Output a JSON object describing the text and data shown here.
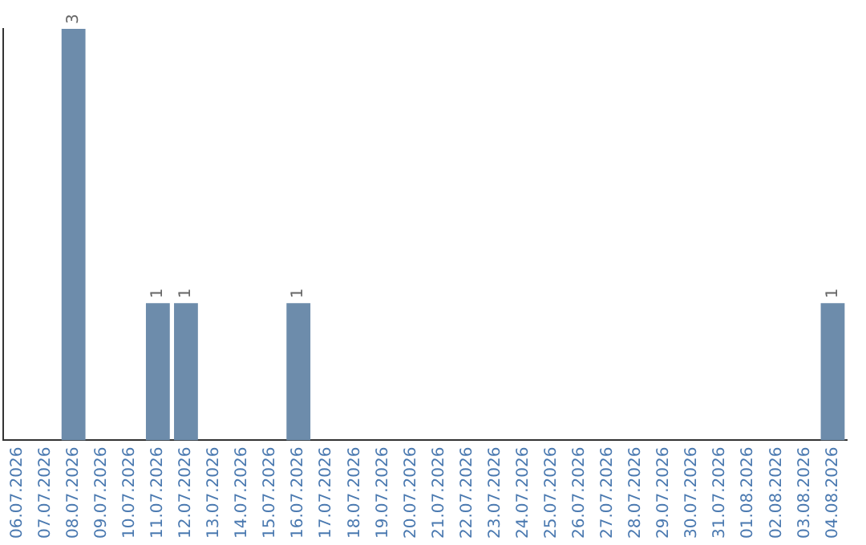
{
  "chart_data": {
    "type": "bar",
    "categories": [
      "06.07.2026",
      "07.07.2026",
      "08.07.2026",
      "09.07.2026",
      "10.07.2026",
      "11.07.2026",
      "12.07.2026",
      "13.07.2026",
      "14.07.2026",
      "15.07.2026",
      "16.07.2026",
      "17.07.2026",
      "18.07.2026",
      "19.07.2026",
      "20.07.2026",
      "21.07.2026",
      "22.07.2026",
      "23.07.2026",
      "24.07.2026",
      "25.07.2026",
      "26.07.2026",
      "27.07.2026",
      "28.07.2026",
      "29.07.2026",
      "30.07.2026",
      "31.07.2026",
      "01.08.2026",
      "02.08.2026",
      "03.08.2026",
      "04.08.2026"
    ],
    "values": [
      0,
      0,
      3,
      0,
      0,
      1,
      1,
      0,
      0,
      0,
      1,
      0,
      0,
      0,
      0,
      0,
      0,
      0,
      0,
      0,
      0,
      0,
      0,
      0,
      0,
      0,
      0,
      0,
      0,
      1
    ],
    "value_labels": [
      null,
      null,
      "3",
      null,
      null,
      "1",
      "1",
      null,
      null,
      null,
      "1",
      null,
      null,
      null,
      null,
      null,
      null,
      null,
      null,
      null,
      null,
      null,
      null,
      null,
      null,
      null,
      null,
      null,
      null,
      "1"
    ],
    "color": "#6d8cab",
    "grid": false,
    "legend": false,
    "tick_labels": "x"
  }
}
